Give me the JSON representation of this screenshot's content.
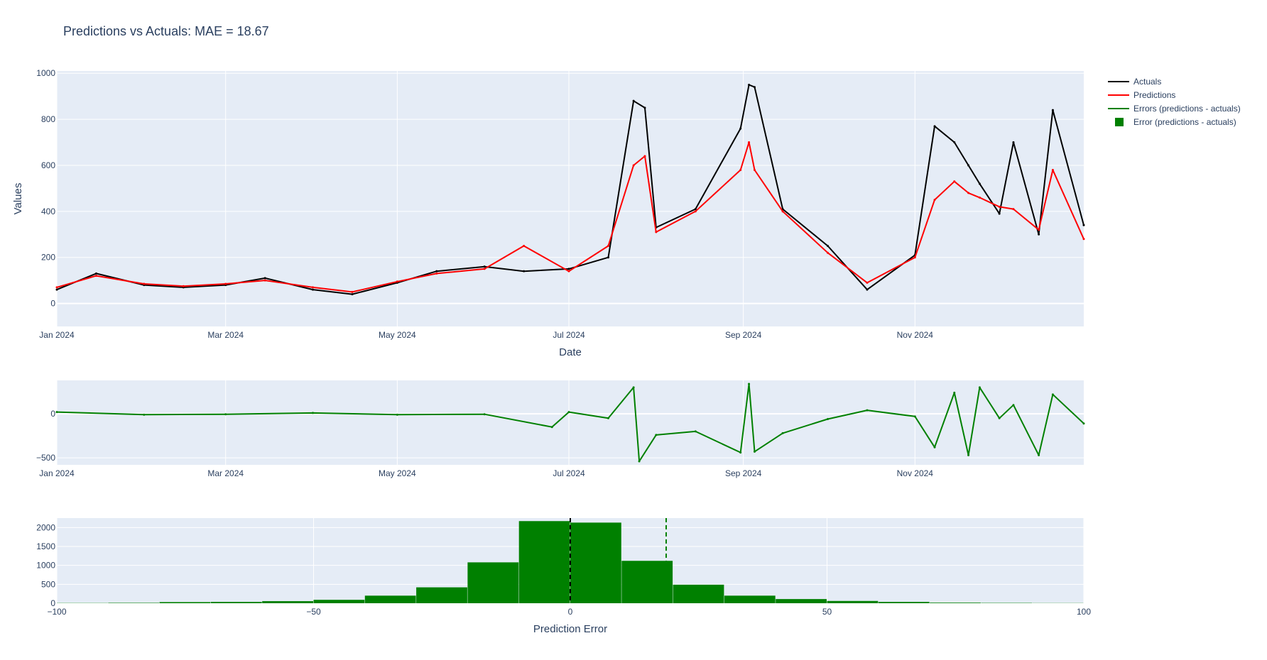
{
  "chart_data": {
    "title": "Predictions vs Actuals: MAE = 18.67",
    "legend": {
      "placement": "top-right",
      "items": [
        {
          "label": "Actuals",
          "color": "#000000",
          "symbol": "line"
        },
        {
          "label": "Predictions",
          "color": "#ff0000",
          "symbol": "line"
        },
        {
          "label": "Errors (predictions - actuals)",
          "color": "#008000",
          "symbol": "line"
        },
        {
          "label": "Error (predictions - actuals)",
          "color": "#008000",
          "symbol": "square"
        }
      ]
    },
    "panels": [
      {
        "type": "line",
        "xlabel": "Date",
        "ylabel": "Values",
        "x_range": [
          "2024-01-01",
          "2024-12-31"
        ],
        "ylim": [
          -100,
          1010
        ],
        "x_ticks": [
          {
            "value": "2024-01-01",
            "label": "Jan 2024"
          },
          {
            "value": "2024-03-01",
            "label": "Mar 2024"
          },
          {
            "value": "2024-05-01",
            "label": "May 2024"
          },
          {
            "value": "2024-07-01",
            "label": "Jul 2024"
          },
          {
            "value": "2024-09-01",
            "label": "Sep 2024"
          },
          {
            "value": "2024-11-01",
            "label": "Nov 2024"
          }
        ],
        "y_ticks": [
          {
            "value": 0,
            "label": "0"
          },
          {
            "value": 200,
            "label": "200"
          },
          {
            "value": 400,
            "label": "400"
          },
          {
            "value": 600,
            "label": "600"
          },
          {
            "value": 800,
            "label": "800"
          },
          {
            "value": 1000,
            "label": "1000"
          }
        ],
        "grid": true,
        "series": [
          {
            "name": "Actuals",
            "color": "#000000",
            "x": [
              "2024-01-01",
              "2024-01-15",
              "2024-02-01",
              "2024-02-15",
              "2024-03-01",
              "2024-03-15",
              "2024-04-01",
              "2024-04-15",
              "2024-05-01",
              "2024-05-15",
              "2024-06-01",
              "2024-06-15",
              "2024-07-01",
              "2024-07-15",
              "2024-07-24",
              "2024-07-28",
              "2024-08-01",
              "2024-08-15",
              "2024-08-31",
              "2024-09-03",
              "2024-09-05",
              "2024-09-15",
              "2024-10-01",
              "2024-10-15",
              "2024-11-01",
              "2024-11-08",
              "2024-11-15",
              "2024-11-20",
              "2024-11-24",
              "2024-12-01",
              "2024-12-06",
              "2024-12-15",
              "2024-12-20",
              "2024-12-31"
            ],
            "y": [
              60,
              130,
              80,
              70,
              80,
              110,
              60,
              40,
              90,
              140,
              160,
              140,
              150,
              200,
              880,
              850,
              330,
              410,
              760,
              950,
              940,
              410,
              250,
              60,
              210,
              770,
              700,
              600,
              520,
              390,
              700,
              300,
              840,
              340
            ]
          },
          {
            "name": "Predictions",
            "color": "#ff0000",
            "x": [
              "2024-01-01",
              "2024-01-15",
              "2024-02-01",
              "2024-02-15",
              "2024-03-01",
              "2024-03-15",
              "2024-04-01",
              "2024-04-15",
              "2024-05-01",
              "2024-05-15",
              "2024-06-01",
              "2024-06-15",
              "2024-07-01",
              "2024-07-15",
              "2024-07-24",
              "2024-07-28",
              "2024-08-01",
              "2024-08-15",
              "2024-08-31",
              "2024-09-03",
              "2024-09-05",
              "2024-09-15",
              "2024-10-01",
              "2024-10-15",
              "2024-11-01",
              "2024-11-08",
              "2024-11-15",
              "2024-11-20",
              "2024-11-24",
              "2024-12-01",
              "2024-12-06",
              "2024-12-15",
              "2024-12-20",
              "2024-12-31"
            ],
            "y": [
              70,
              120,
              85,
              75,
              85,
              100,
              70,
              50,
              95,
              130,
              150,
              250,
              140,
              250,
              600,
              640,
              310,
              400,
              580,
              700,
              580,
              400,
              220,
              90,
              200,
              450,
              530,
              480,
              460,
              420,
              410,
              320,
              580,
              280
            ]
          }
        ]
      },
      {
        "type": "line",
        "xlabel": "",
        "ylabel": "",
        "x_range": [
          "2024-01-01",
          "2024-12-31"
        ],
        "ylim": [
          -580,
          380
        ],
        "x_ticks": [
          {
            "value": "2024-01-01",
            "label": "Jan 2024"
          },
          {
            "value": "2024-03-01",
            "label": "Mar 2024"
          },
          {
            "value": "2024-05-01",
            "label": "May 2024"
          },
          {
            "value": "2024-07-01",
            "label": "Jul 2024"
          },
          {
            "value": "2024-09-01",
            "label": "Sep 2024"
          },
          {
            "value": "2024-11-01",
            "label": "Nov 2024"
          }
        ],
        "y_ticks": [
          {
            "value": 0,
            "label": "0"
          },
          {
            "value": -500,
            "label": "−500"
          }
        ],
        "grid": true,
        "series": [
          {
            "name": "Errors (predictions - actuals)",
            "color": "#008000",
            "x": [
              "2024-01-01",
              "2024-02-01",
              "2024-03-01",
              "2024-04-01",
              "2024-05-01",
              "2024-06-01",
              "2024-06-25",
              "2024-07-01",
              "2024-07-15",
              "2024-07-24",
              "2024-07-26",
              "2024-08-01",
              "2024-08-15",
              "2024-08-31",
              "2024-09-03",
              "2024-09-05",
              "2024-09-15",
              "2024-10-01",
              "2024-10-15",
              "2024-11-01",
              "2024-11-08",
              "2024-11-15",
              "2024-11-20",
              "2024-11-24",
              "2024-12-01",
              "2024-12-06",
              "2024-12-15",
              "2024-12-20",
              "2024-12-31"
            ],
            "y": [
              20,
              -10,
              -5,
              10,
              -10,
              -5,
              -150,
              20,
              -50,
              300,
              -540,
              -240,
              -200,
              -440,
              340,
              -430,
              -220,
              -60,
              40,
              -30,
              -380,
              240,
              -470,
              300,
              -50,
              100,
              -470,
              220,
              -110
            ]
          }
        ]
      },
      {
        "type": "bar",
        "xlabel": "Prediction Error",
        "ylabel": "",
        "xlim": [
          -100,
          100
        ],
        "ylim": [
          0,
          2250
        ],
        "x_ticks": [
          {
            "value": -100,
            "label": "−100"
          },
          {
            "value": -50,
            "label": "−50"
          },
          {
            "value": 0,
            "label": "0"
          },
          {
            "value": 50,
            "label": "50"
          },
          {
            "value": 100,
            "label": "100"
          }
        ],
        "y_ticks": [
          {
            "value": 0,
            "label": "0"
          },
          {
            "value": 500,
            "label": "500"
          },
          {
            "value": 1000,
            "label": "1000"
          },
          {
            "value": 1500,
            "label": "1500"
          },
          {
            "value": 2000,
            "label": "2000"
          }
        ],
        "grid": true,
        "bin_edges": [
          -100,
          -90,
          -80,
          -70,
          -60,
          -50,
          -40,
          -30,
          -20,
          -10,
          0,
          10,
          20,
          30,
          40,
          50,
          60,
          70,
          80,
          90,
          100
        ],
        "series": [
          {
            "name": "Error (predictions - actuals)",
            "color": "#008000",
            "values": [
              5,
              10,
              30,
              35,
              55,
              90,
              200,
              420,
              1080,
              2170,
              2130,
              1120,
              490,
              200,
              110,
              60,
              35,
              15,
              8,
              4
            ]
          }
        ],
        "reference_lines": [
          {
            "x": 0,
            "color": "#000000",
            "style": "dashed"
          },
          {
            "x": 18.67,
            "color": "#008000",
            "style": "dashed"
          }
        ]
      }
    ]
  }
}
